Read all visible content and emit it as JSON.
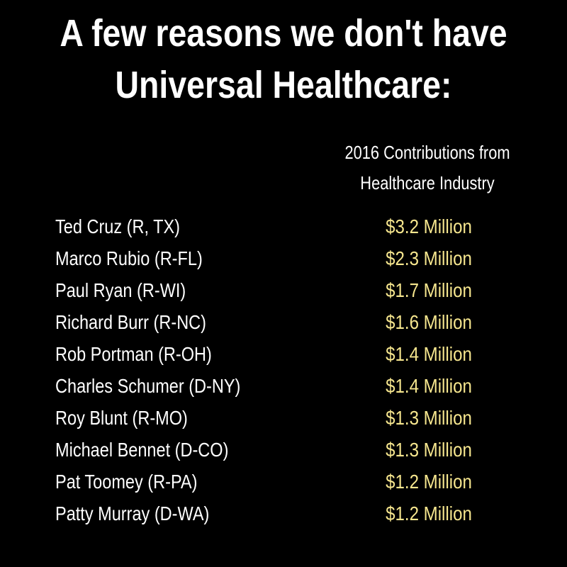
{
  "title": {
    "lines": [
      "A few reasons we don't have",
      "Universal Healthcare:"
    ]
  },
  "table": {
    "header": [
      "2016 Contributions from",
      "Healthcare Industry"
    ],
    "rows": [
      [
        "Ted Cruz (R, TX)",
        "$3.2 Million"
      ],
      [
        "Marco Rubio (R-FL)",
        "$2.3 Million"
      ],
      [
        "Paul Ryan (R-WI)",
        "$1.7 Million"
      ],
      [
        "Richard Burr (R-NC)",
        "$1.6 Million"
      ],
      [
        "Rob Portman (R-OH)",
        "$1.4 Million"
      ],
      [
        "Charles Schumer (D-NY)",
        "$1.4 Million"
      ],
      [
        "Roy Blunt (R-MO)",
        "$1.3 Million"
      ],
      [
        "Michael Bennet (D-CO)",
        "$1.3 Million"
      ],
      [
        "Pat Toomey (R-PA)",
        "$1.2 Million"
      ],
      [
        "Patty Murray (D-WA)",
        "$1.2 Million"
      ]
    ]
  }
}
